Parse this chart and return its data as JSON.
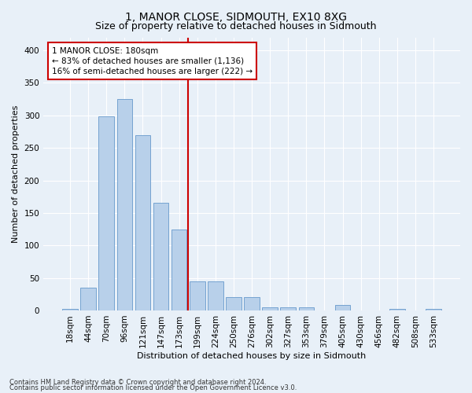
{
  "title": "1, MANOR CLOSE, SIDMOUTH, EX10 8XG",
  "subtitle": "Size of property relative to detached houses in Sidmouth",
  "xlabel": "Distribution of detached houses by size in Sidmouth",
  "ylabel": "Number of detached properties",
  "categories": [
    "18sqm",
    "44sqm",
    "70sqm",
    "96sqm",
    "121sqm",
    "147sqm",
    "173sqm",
    "199sqm",
    "224sqm",
    "250sqm",
    "276sqm",
    "302sqm",
    "327sqm",
    "353sqm",
    "379sqm",
    "405sqm",
    "430sqm",
    "456sqm",
    "482sqm",
    "508sqm",
    "533sqm"
  ],
  "values": [
    2,
    35,
    298,
    325,
    270,
    165,
    125,
    45,
    45,
    20,
    20,
    5,
    5,
    5,
    0,
    8,
    0,
    0,
    2,
    0,
    2
  ],
  "bar_color": "#b8d0ea",
  "bar_edge_color": "#6699cc",
  "vline_color": "#cc0000",
  "vline_x": 6.5,
  "annotation_text": "1 MANOR CLOSE: 180sqm\n← 83% of detached houses are smaller (1,136)\n16% of semi-detached houses are larger (222) →",
  "annotation_box_color": "#cc0000",
  "ylim": [
    0,
    420
  ],
  "yticks": [
    0,
    50,
    100,
    150,
    200,
    250,
    300,
    350,
    400
  ],
  "footer_line1": "Contains HM Land Registry data © Crown copyright and database right 2024.",
  "footer_line2": "Contains public sector information licensed under the Open Government Licence v3.0.",
  "bg_color": "#e8f0f8",
  "plot_bg_color": "#e8f0f8",
  "grid_color": "#ffffff",
  "title_fontsize": 10,
  "subtitle_fontsize": 9,
  "xlabel_fontsize": 8,
  "ylabel_fontsize": 8,
  "tick_fontsize": 7.5,
  "annotation_fontsize": 7.5,
  "footer_fontsize": 6
}
